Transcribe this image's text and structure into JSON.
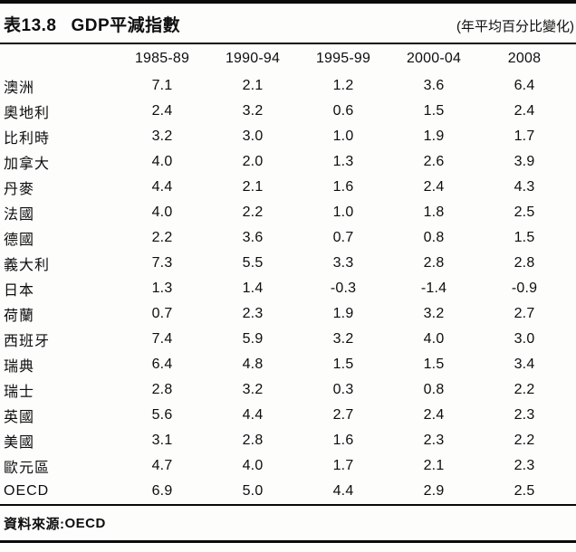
{
  "header": {
    "table_number": "表13.8",
    "title": "GDP平減指數",
    "unit_note": "(年平均百分比變化)"
  },
  "table": {
    "columns": [
      "1985-89",
      "1990-94",
      "1995-99",
      "2000-04",
      "2008"
    ],
    "rows": [
      {
        "label": "澳洲",
        "values": [
          "7.1",
          "2.1",
          "1.2",
          "3.6",
          "6.4"
        ]
      },
      {
        "label": "奧地利",
        "values": [
          "2.4",
          "3.2",
          "0.6",
          "1.5",
          "2.4"
        ]
      },
      {
        "label": "比利時",
        "values": [
          "3.2",
          "3.0",
          "1.0",
          "1.9",
          "1.7"
        ]
      },
      {
        "label": "加拿大",
        "values": [
          "4.0",
          "2.0",
          "1.3",
          "2.6",
          "3.9"
        ]
      },
      {
        "label": "丹麥",
        "values": [
          "4.4",
          "2.1",
          "1.6",
          "2.4",
          "4.3"
        ]
      },
      {
        "label": "法國",
        "values": [
          "4.0",
          "2.2",
          "1.0",
          "1.8",
          "2.5"
        ]
      },
      {
        "label": "德國",
        "values": [
          "2.2",
          "3.6",
          "0.7",
          "0.8",
          "1.5"
        ]
      },
      {
        "label": "義大利",
        "values": [
          "7.3",
          "5.5",
          "3.3",
          "2.8",
          "2.8"
        ]
      },
      {
        "label": "日本",
        "values": [
          "1.3",
          "1.4",
          "-0.3",
          "-1.4",
          "-0.9"
        ]
      },
      {
        "label": "荷蘭",
        "values": [
          "0.7",
          "2.3",
          "1.9",
          "3.2",
          "2.7"
        ]
      },
      {
        "label": "西班牙",
        "values": [
          "7.4",
          "5.9",
          "3.2",
          "4.0",
          "3.0"
        ]
      },
      {
        "label": "瑞典",
        "values": [
          "6.4",
          "4.8",
          "1.5",
          "1.5",
          "3.4"
        ]
      },
      {
        "label": "瑞士",
        "values": [
          "2.8",
          "3.2",
          "0.3",
          "0.8",
          "2.2"
        ]
      },
      {
        "label": "英國",
        "values": [
          "5.6",
          "4.4",
          "2.7",
          "2.4",
          "2.3"
        ]
      },
      {
        "label": "美國",
        "values": [
          "3.1",
          "2.8",
          "1.6",
          "2.3",
          "2.2"
        ]
      },
      {
        "label": "歐元區",
        "values": [
          "4.7",
          "4.0",
          "1.7",
          "2.1",
          "2.3"
        ]
      },
      {
        "label": "OECD",
        "values": [
          "6.9",
          "5.0",
          "4.4",
          "2.9",
          "2.5"
        ]
      }
    ]
  },
  "footer": {
    "source_label": "資料來源:",
    "source_value": "OECD"
  },
  "colors": {
    "ink": "#0e0e0e",
    "paper": "#fdfdfc"
  }
}
